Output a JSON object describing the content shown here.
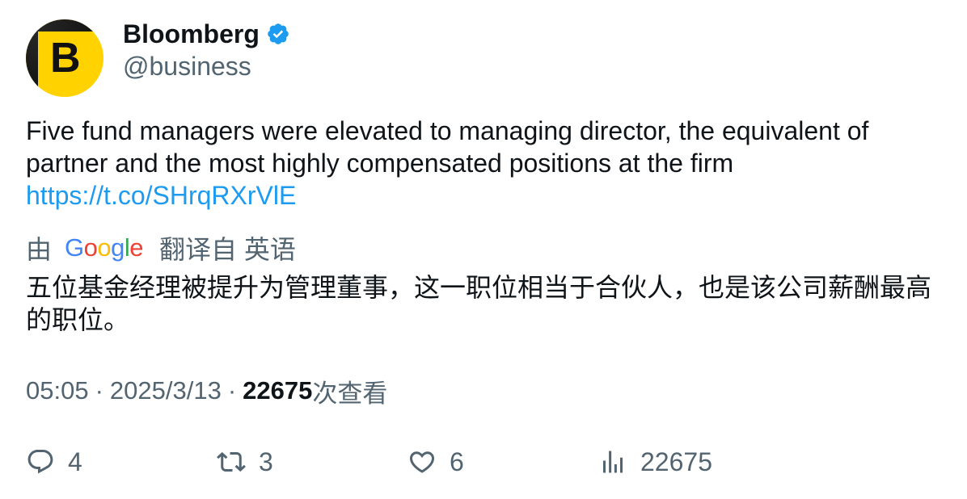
{
  "author": {
    "avatar_letter": "B",
    "name": "Bloomberg",
    "handle": "@business",
    "verified": true
  },
  "tweet": {
    "text": "Five fund managers were elevated to managing director, the equivalent of partner and the most highly compensated positions at the firm",
    "link": "https://t.co/SHrqRXrVlE"
  },
  "translation": {
    "by_label": "由",
    "provider": "Google",
    "translated_from": "翻译自 英语",
    "text": "五位基金经理被提升为管理董事，这一职位相当于合伙人，也是该公司薪酬最高的职位。"
  },
  "meta": {
    "time": "05:05",
    "separator": "·",
    "date": "2025/3/13",
    "views": "22675",
    "views_label": "次查看"
  },
  "actions": {
    "replies": "4",
    "retweets": "3",
    "likes": "6",
    "views": "22675"
  },
  "colors": {
    "accent": "#1d9bf0",
    "muted": "#536471",
    "text": "#0f1419",
    "avatar_bg": "#ffd200"
  }
}
